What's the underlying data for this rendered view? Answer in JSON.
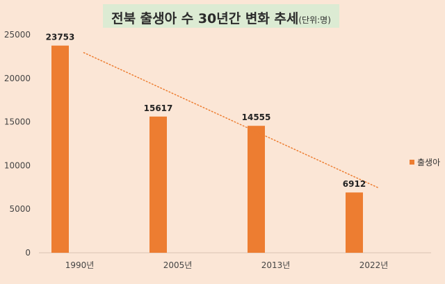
{
  "chart_data": {
    "type": "bar",
    "title": "전북 출생아 수 30년간 변화 추세",
    "unit": "(단위:명)",
    "categories": [
      "1990년",
      "2005년",
      "2013년",
      "2022년"
    ],
    "series": [
      {
        "name": "출생아",
        "values": [
          23753,
          15617,
          14555,
          6912
        ],
        "color": "#ed7d31"
      }
    ],
    "ylim": [
      0,
      25000
    ],
    "yticks": [
      0,
      5000,
      10000,
      15000,
      20000,
      25000
    ],
    "trendline": {
      "type": "linear",
      "style": "dotted",
      "color": "#ed7d31"
    },
    "grid": false,
    "legend": "right"
  }
}
